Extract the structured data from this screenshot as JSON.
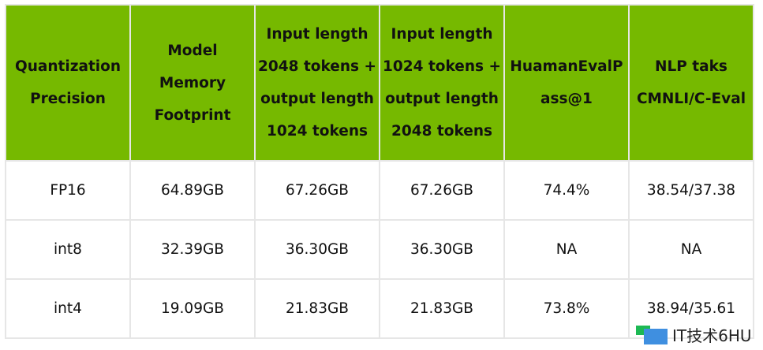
{
  "table": {
    "headers": [
      "Quantization Precision",
      "Model Memory Footprint",
      "Input length 2048 tokens + output length 1024 tokens",
      "Input length 1024 tokens + output length 2048 tokens",
      "HuamanEvalPass@1",
      "NLP taks CMNLI/C-Eval"
    ],
    "rows": [
      [
        "FP16",
        "64.89GB",
        "67.26GB",
        "67.26GB",
        "74.4%",
        "38.54/37.38"
      ],
      [
        "int8",
        "32.39GB",
        "36.30GB",
        "36.30GB",
        "NA",
        "NA"
      ],
      [
        "int4",
        "19.09GB",
        "21.83GB",
        "21.83GB",
        "73.8%",
        "38.94/35.61"
      ]
    ],
    "header_color": "#76b900"
  },
  "watermark": {
    "text": "IT技术6HU"
  }
}
